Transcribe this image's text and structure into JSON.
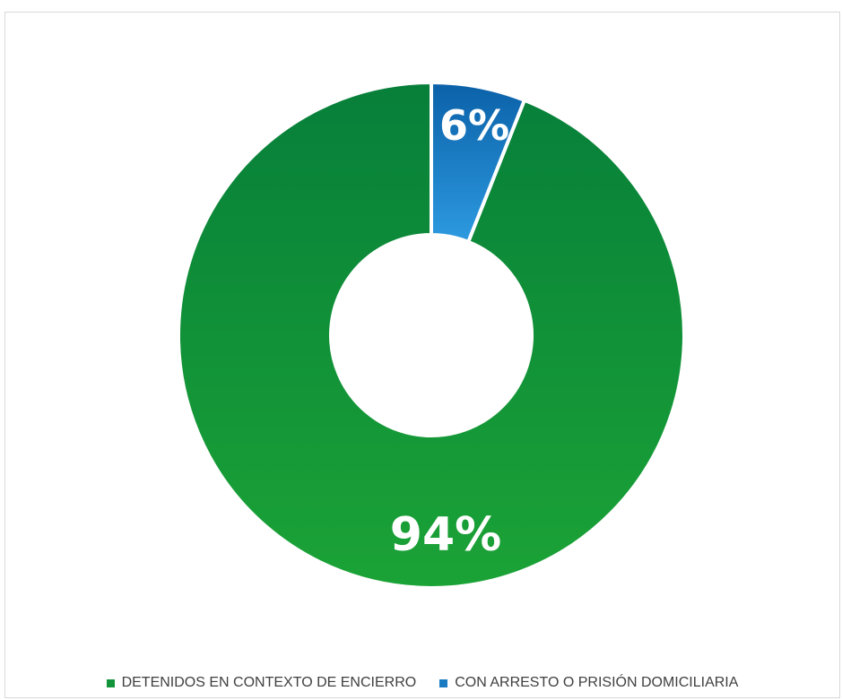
{
  "chart_data": {
    "type": "pie",
    "variant": "donut",
    "title": "",
    "series": [
      {
        "name": "DETENIDOS EN CONTEXTO DE ENCIERRO",
        "value": 94,
        "label": "94%",
        "color": "#12953a",
        "color_top": "#077f3a",
        "color_bottom": "#1ba336"
      },
      {
        "name": "CON ARRESTO O PRISIÓN DOMICILIARIA",
        "value": 6,
        "label": "6%",
        "color": "#1a7ac2",
        "color_top": "#0b61a8",
        "color_bottom": "#2d9ae0"
      }
    ],
    "legend_position": "bottom"
  }
}
